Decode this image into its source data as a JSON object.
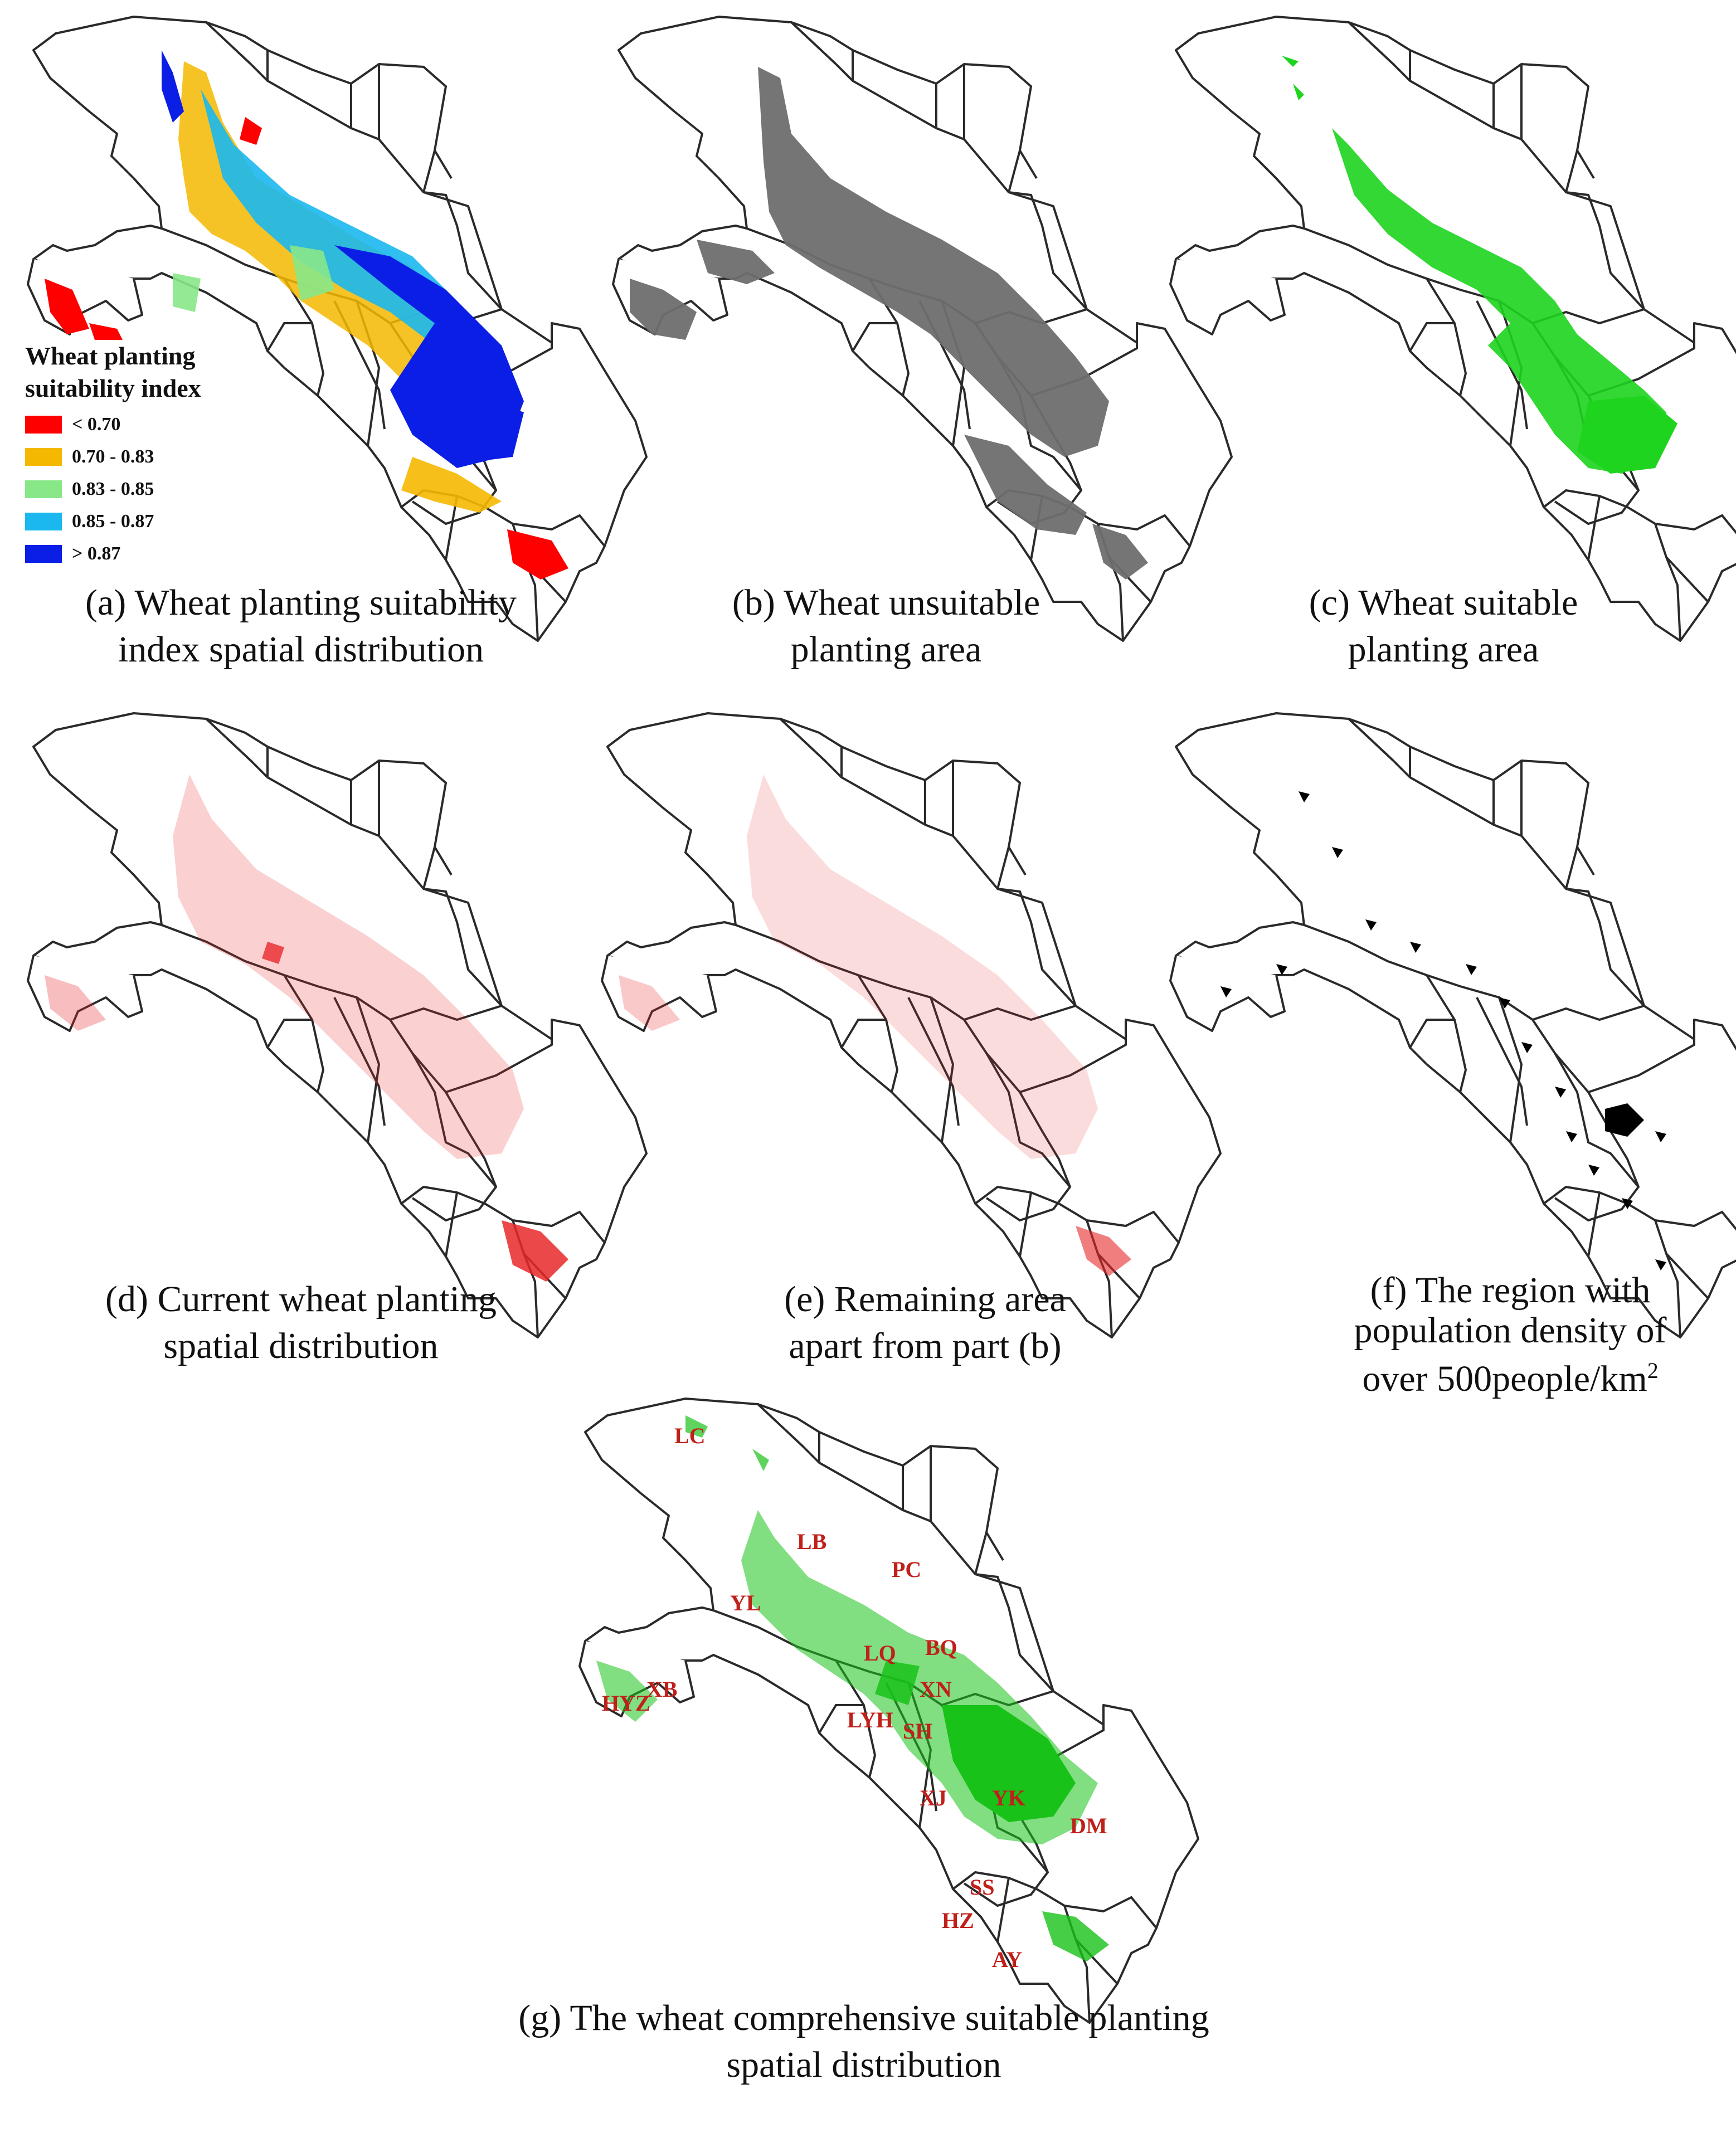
{
  "colors": {
    "boundary": "#2a2a2a",
    "unsuitable": "#6e6e6e",
    "suitable": "#1ed41e",
    "current": "#e8282a",
    "population": "#000000",
    "comprehensive": "#19c219",
    "county_label": "#c0201a"
  },
  "legend": {
    "title_line1": "Wheat planting",
    "title_line2": "suitability index",
    "items": [
      {
        "label": "< 0.70",
        "color": "#ff0000"
      },
      {
        "label": "0.70 - 0.83",
        "color": "#f5b800"
      },
      {
        "label": "0.83 - 0.85",
        "color": "#88e888"
      },
      {
        "label": "0.85 - 0.87",
        "color": "#1ab8ee"
      },
      {
        "label": "> 0.87",
        "color": "#0b1ee6"
      }
    ]
  },
  "panels": {
    "a": {
      "caption_line1": "(a) Wheat planting suitability",
      "caption_line2": "index spatial distribution"
    },
    "b": {
      "caption_line1": "(b) Wheat unsuitable",
      "caption_line2": "planting area"
    },
    "c": {
      "caption_line1": "(c) Wheat suitable",
      "caption_line2": "planting area"
    },
    "d": {
      "caption_line1": "(d) Current wheat planting",
      "caption_line2": "spatial distribution"
    },
    "e": {
      "caption_line1": "(e) Remaining area",
      "caption_line2": "apart from part (b)"
    },
    "f": {
      "caption_line1": "(f) The region with",
      "caption_line2": "population density of",
      "caption_line3_text": "over 500people/km",
      "caption_line3_sup": "2"
    },
    "g": {
      "caption_line1": "(g) The wheat comprehensive suitable planting",
      "caption_line2": "spatial distribution"
    }
  },
  "counties": [
    "LC",
    "LB",
    "PC",
    "YL",
    "LQ",
    "BQ",
    "XN",
    "XB",
    "HYZ",
    "LYH",
    "SH",
    "XJ",
    "YK",
    "DM",
    "SS",
    "HZ",
    "AY"
  ]
}
